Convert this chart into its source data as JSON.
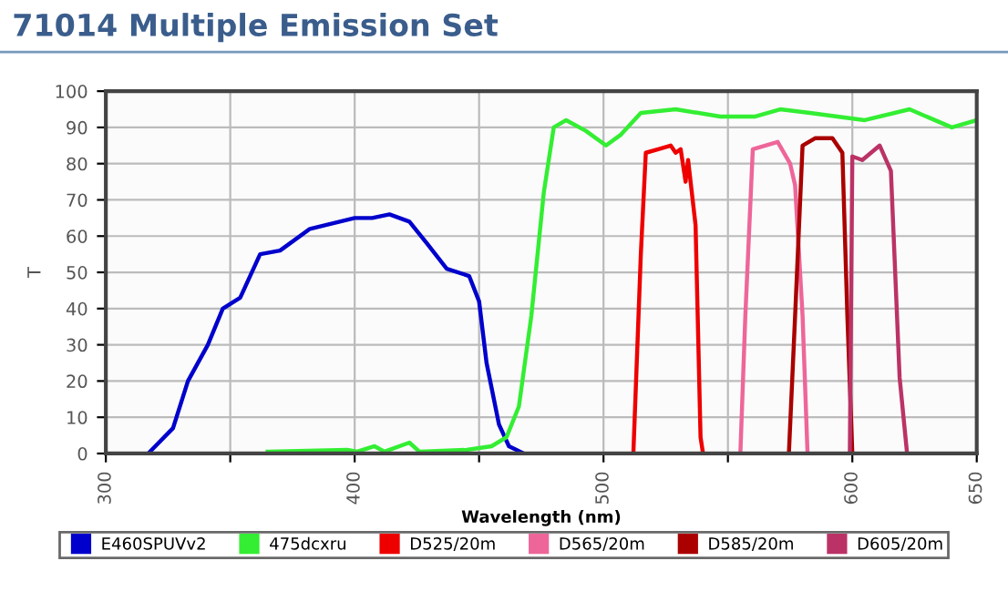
{
  "chart_data": {
    "type": "line",
    "title": "71014 Multiple Emission Set",
    "xlabel": "Wavelength (nm)",
    "ylabel": "T",
    "xlim": [
      300,
      650
    ],
    "xticks": [
      300,
      {
        "value": 350,
        "label": null
      },
      400,
      {
        "value": 450,
        "label": null
      },
      500,
      {
        "value": 550,
        "label": null
      },
      600,
      650
    ],
    "ylim": [
      0,
      100
    ],
    "yticks": [
      0,
      10,
      20,
      30,
      40,
      50,
      60,
      70,
      80,
      90,
      100
    ],
    "grid": true,
    "legend": "bottom",
    "marker": "none",
    "line_style": "solid",
    "series": [
      {
        "name": "E460SPUVv2",
        "color": "#0000cc",
        "x": [
          317,
          327,
          333,
          341,
          347,
          354,
          362,
          370,
          382,
          400,
          407,
          414,
          422,
          429,
          437,
          446,
          450,
          453,
          458,
          462,
          468
        ],
        "values": [
          0,
          7,
          20,
          30,
          40,
          43,
          55,
          56,
          62,
          65,
          65,
          66,
          64,
          58,
          51,
          49,
          42,
          25,
          8,
          2,
          0
        ]
      },
      {
        "name": "475dcxru",
        "color": "#33ee33",
        "x": [
          365,
          397,
          401,
          408,
          412,
          422,
          426,
          445,
          455,
          461,
          466,
          471,
          476,
          480,
          485,
          493,
          501,
          507,
          515,
          529,
          547,
          561,
          571,
          583,
          605,
          623,
          640,
          650
        ],
        "values": [
          0.5,
          1,
          0.5,
          2,
          0.5,
          3,
          0.5,
          1,
          2,
          4.5,
          13,
          38,
          72,
          90,
          92,
          89,
          85,
          88,
          94,
          95,
          93,
          93,
          95,
          94,
          92,
          95,
          90,
          92
        ]
      },
      {
        "name": "D525/20m",
        "color": "#ee0000",
        "x": [
          512,
          515,
          517,
          522,
          527,
          529,
          531,
          533,
          534,
          537,
          539,
          540
        ],
        "values": [
          0,
          55,
          83,
          84,
          85,
          83,
          84,
          75,
          81,
          63,
          4.5,
          0
        ]
      },
      {
        "name": "D565/20m",
        "color": "#ee6699",
        "x": [
          555,
          557,
          560,
          565,
          570,
          575,
          577,
          580,
          582
        ],
        "values": [
          0,
          38,
          84,
          85,
          86,
          80,
          74,
          38,
          0
        ]
      },
      {
        "name": "D585/20m",
        "color": "#aa0000",
        "x": [
          574.5,
          577,
          580,
          585,
          592,
          596,
          598,
          600
        ],
        "values": [
          0,
          38,
          85,
          87,
          87,
          83,
          38,
          0
        ]
      },
      {
        "name": "D605/20m",
        "color": "#bb3366",
        "x": [
          599,
          600,
          604,
          611,
          615.5,
          619,
          622
        ],
        "values": [
          0,
          82,
          81,
          85,
          78,
          21,
          0
        ]
      }
    ]
  }
}
